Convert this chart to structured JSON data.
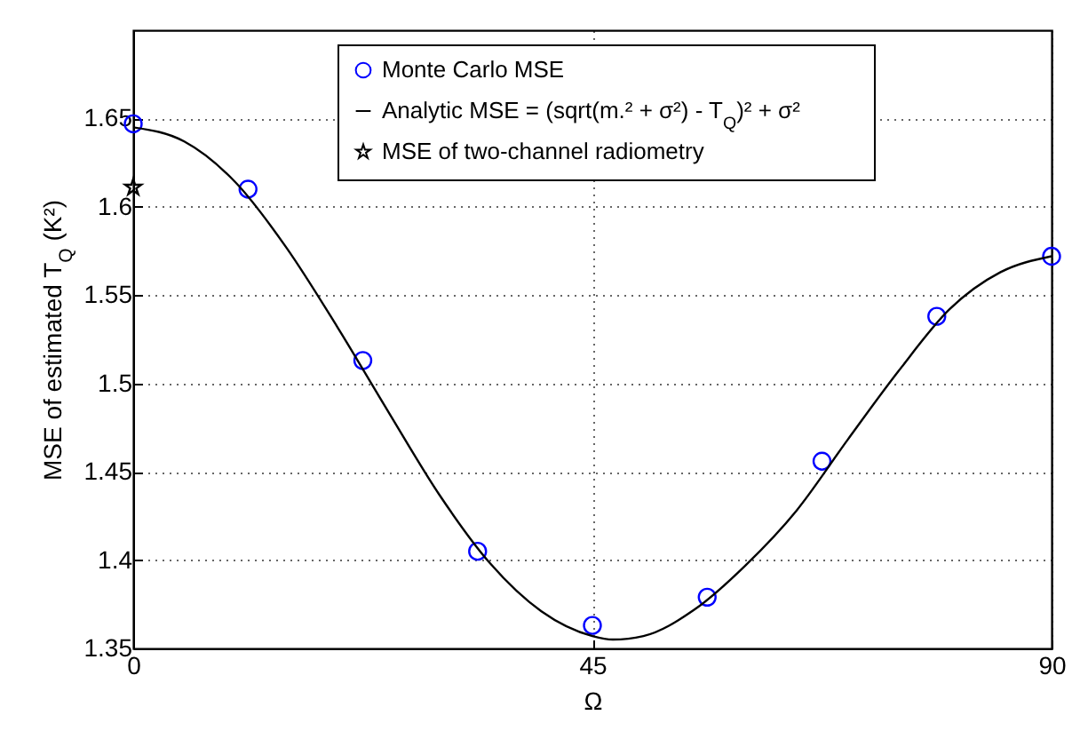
{
  "chart_data": {
    "type": "scatter",
    "xlabel": "Ω",
    "ylabel": "MSE of estimated T$_{Q}$   (K²)",
    "xlim": [
      0,
      90
    ],
    "xticks": [
      0,
      45,
      90
    ],
    "ylim": [
      1.35,
      1.7
    ],
    "yticks": [
      1.35,
      1.4,
      1.45,
      1.5,
      1.55,
      1.6,
      1.65
    ],
    "grid": true,
    "legend": "top",
    "series": [
      {
        "name": "Monte Carlo MSE",
        "marker": "circle",
        "color": "#0000ff",
        "x": [
          0,
          11.25,
          22.5,
          33.75,
          45,
          56.25,
          67.5,
          78.75,
          90
        ],
        "values": [
          1.647,
          1.61,
          1.513,
          1.405,
          1.363,
          1.379,
          1.456,
          1.538,
          1.572
        ]
      },
      {
        "name": "Analytic MSE = (sqrt(m.² + σ²) - T$_{Q}$)² + σ²",
        "type": "line",
        "marker": "none",
        "line_style": "solid",
        "color": "#000000",
        "x": [
          0,
          5,
          10,
          15,
          20,
          25,
          30,
          35,
          40,
          45,
          47,
          50,
          55,
          60,
          65,
          70,
          75,
          80,
          85,
          90
        ],
        "values": [
          1.645,
          1.637,
          1.614,
          1.577,
          1.532,
          1.484,
          1.437,
          1.398,
          1.371,
          1.357,
          1.355,
          1.357,
          1.372,
          1.397,
          1.428,
          1.468,
          1.507,
          1.542,
          1.563,
          1.572
        ]
      },
      {
        "name": "MSE of two-channel radiometry",
        "marker": "star",
        "color": "#000000",
        "x": [
          0
        ],
        "values": [
          1.611
        ]
      }
    ]
  }
}
